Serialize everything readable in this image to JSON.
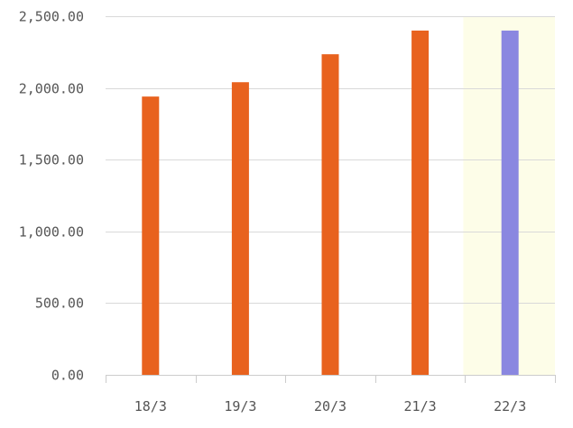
{
  "chart_data": {
    "type": "bar",
    "title": "",
    "xlabel": "",
    "ylabel": "",
    "categories": [
      "18/3",
      "19/3",
      "20/3",
      "21/3",
      "22/3"
    ],
    "values": [
      1940,
      2040,
      2235,
      2400,
      2400
    ],
    "bar_colors": [
      "#e8621e",
      "#e8621e",
      "#e8621e",
      "#e8621e",
      "#8a87e0"
    ],
    "highlight_category": "22/3",
    "highlight_background": "#fdfde8",
    "ylim": [
      0,
      2500
    ],
    "yticks": [
      0,
      500,
      1000,
      1500,
      2000,
      2500
    ],
    "ytick_labels": [
      "0.00",
      "500.00",
      "1,000.00",
      "1,500.00",
      "2,000.00",
      "2,500.00"
    ],
    "grid": true,
    "grid_color": "#d9d9d9",
    "tick_label_color": "#555555"
  }
}
